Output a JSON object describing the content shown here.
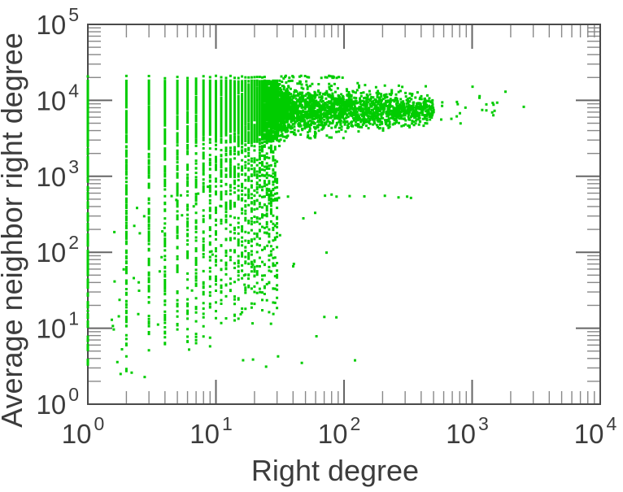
{
  "page": {
    "background": "#ffffff"
  },
  "chart_data": {
    "type": "scatter",
    "title": "",
    "xlabel": "Right degree",
    "ylabel": "Average neighbor right degree",
    "xscale": "log",
    "yscale": "log",
    "xlim": [
      1,
      10000
    ],
    "ylim": [
      1,
      100000
    ],
    "x_tick_exponents": [
      0,
      1,
      2,
      3,
      4
    ],
    "y_tick_exponents": [
      0,
      1,
      2,
      3,
      4,
      5
    ],
    "tick_label_base": "10",
    "minor_tick_multiples": [
      2,
      3,
      4,
      5,
      6,
      7,
      8,
      9
    ],
    "grid": false,
    "legend": null,
    "marker": {
      "shape": "square",
      "size": 3,
      "color": "#00cc00"
    },
    "colors": {
      "axis": "#4a4a4a",
      "major_tick": "#666666",
      "minor_tick": "#888888",
      "text": "#3c3c3c"
    },
    "description": "Average neighbor right degree vs right degree on log-log axes. Vertical columns of points at integer degrees 1-30 spanning y~2 to 2e4; a dense horizontal band centered near y=7e3-8e3 extending from x~10 to x~500 and thinning to sparse points out to x~2600; a flat ceiling of points at y~2e4; horizontal point rows near y~1250 and y~540; sparse low outliers (y between 2 and 900) for x between 2 and 150; empty below y~2e3 for x>300.",
    "generation": {
      "seed": 1337,
      "integer_columns": {
        "x_from": 1,
        "x_to": 30,
        "core": {
          "count_base": 160,
          "count_exp": -0.25,
          "ly_top": 4.26,
          "ly_span": 0.81,
          "top_bias": 1.15
        },
        "tail": {
          "count_base": 170,
          "count_exp": -0.55,
          "ymin_coef": 1.35,
          "ymin_exp": 0.75,
          "x1_ly_min": 0.25,
          "ly_top": 3.45,
          "top_bias": 0.6
        },
        "band_extra": {
          "x_from": 8,
          "count": 46,
          "mu": 3.87,
          "sigma": 0.16
        }
      },
      "continuum_band": {
        "count": 2200,
        "lx_from": 1.48,
        "lx_span": 1.22,
        "low_bias": 1.7,
        "mu": 3.87,
        "sigma_near": 0.17,
        "sigma_taper": 0.08,
        "ly_cap": 4.26
      },
      "sparse_right": {
        "count": 24,
        "lx_from": 2.7,
        "lx_span": 0.72,
        "mu": 3.92,
        "sigma": 0.1
      },
      "ceiling_row": {
        "ly": 4.305,
        "jitter": 0.012,
        "col_x_to": 24,
        "col_prob": 0.9,
        "extra_count": 26,
        "lx_from": 1.38,
        "lx_span": 0.62
      },
      "constant_rows": [
        {
          "ly": 3.095,
          "jitter": 0.012,
          "x_from": 1,
          "x_to": 20,
          "double_prob": 0.45
        },
        {
          "ly": 2.73,
          "jitter": 0.015,
          "count": 16,
          "lx_from": 0.55,
          "lx_span": 2.0
        }
      ],
      "low_outliers": {
        "count": 64,
        "lx_base": 0.18,
        "lx_span": 2.0,
        "lx_bias": 1.5,
        "ly_from": 0.35,
        "ly_span": 2.6
      }
    }
  }
}
